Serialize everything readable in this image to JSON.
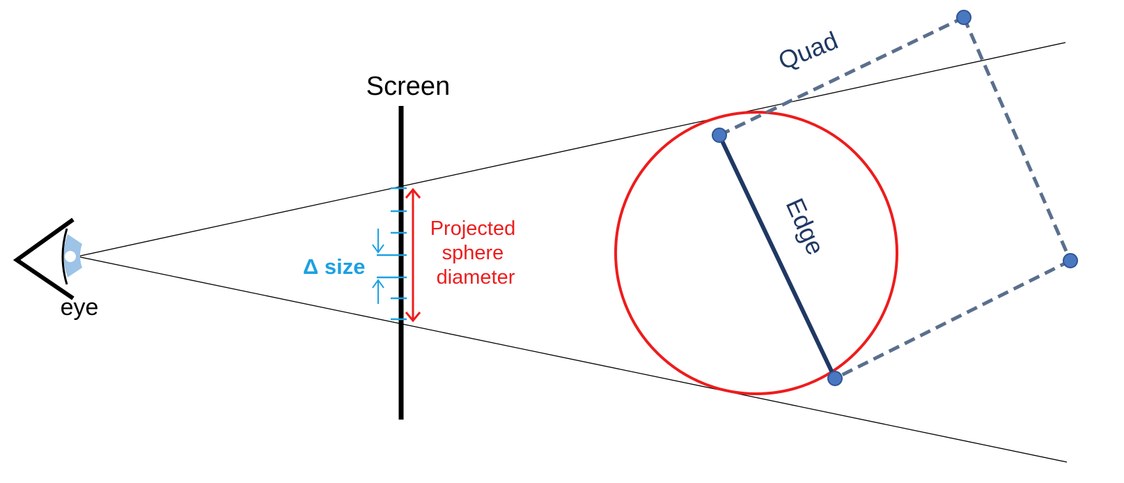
{
  "labels": {
    "screen": "Screen",
    "eye": "eye",
    "delta_size": "Δ size",
    "projected_line1": "Projected",
    "projected_line2": "sphere",
    "projected_line3": "diameter",
    "edge": "Edge",
    "quad": "Quad"
  },
  "colors": {
    "frustum_lines": "#000000",
    "screen": "#000000",
    "sphere": "#ee1c1c",
    "projection_arrow": "#ee1c1c",
    "delta_size": "#1ba1e2",
    "edge": "#1f3864",
    "quad": "#5a6f8d",
    "vertex": "#4a78c0",
    "eye_outline": "#000000",
    "eye_iris": "#9dc3e6"
  }
}
